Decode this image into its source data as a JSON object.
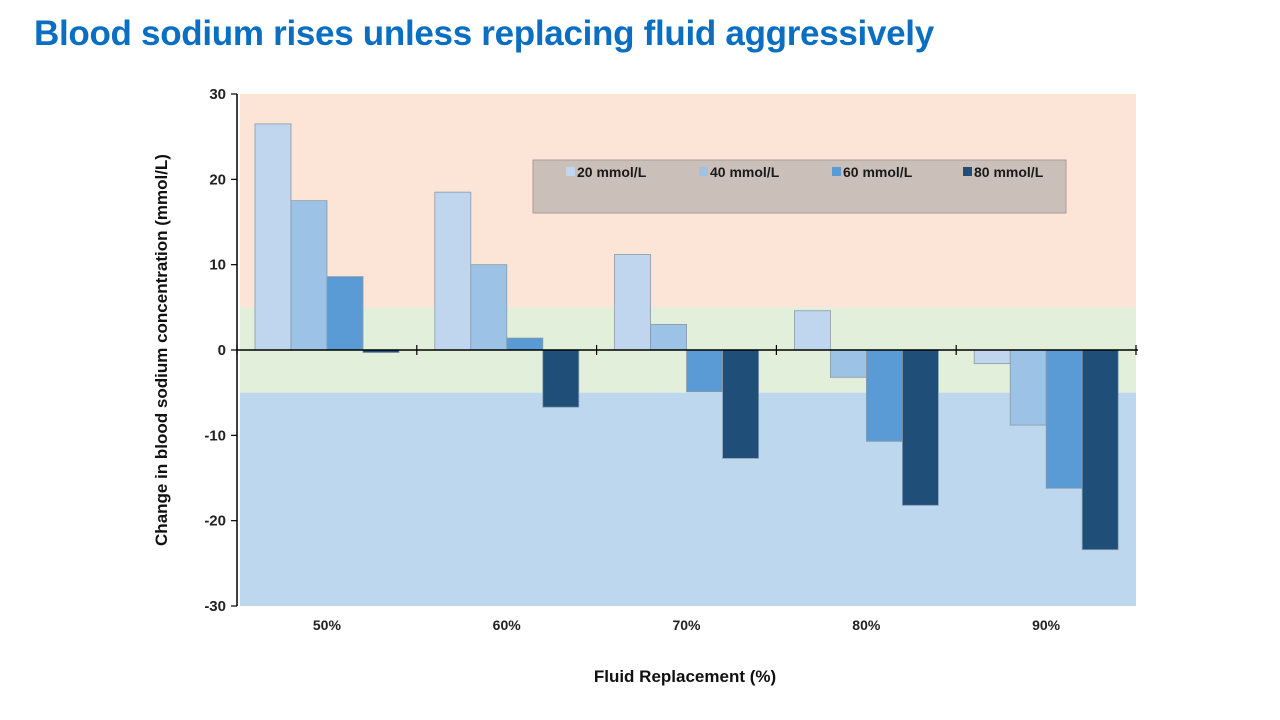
{
  "title": "Blood sodium rises unless replacing fluid aggressively",
  "chart_data": {
    "type": "bar",
    "categories": [
      "50%",
      "60%",
      "70%",
      "80%",
      "90%"
    ],
    "series": [
      {
        "name": "20 mmol/L",
        "color": "#bfd6ee",
        "values": [
          26.5,
          18.5,
          11.2,
          4.6,
          -1.6
        ]
      },
      {
        "name": "40 mmol/L",
        "color": "#9cc2e5",
        "values": [
          17.5,
          10.0,
          3.0,
          -3.2,
          -8.8
        ]
      },
      {
        "name": "60 mmol/L",
        "color": "#5b9bd5",
        "values": [
          8.6,
          1.4,
          -4.9,
          -10.7,
          -16.2
        ]
      },
      {
        "name": "80 mmol/L",
        "color": "#1f4e79",
        "values": [
          -0.3,
          -6.7,
          -12.7,
          -18.2,
          -23.4
        ]
      }
    ],
    "ylim": [
      -30,
      30
    ],
    "yticks": [
      "30",
      "20",
      "10",
      "0",
      "-10",
      "-20",
      "-30"
    ],
    "ylabel": "Change in blood sodium concentration (mmol/L)",
    "xlabel": "Fluid Replacement (%)",
    "zones": [
      {
        "from": 5,
        "to": 30,
        "color": "#fce4d6"
      },
      {
        "from": -5,
        "to": 5,
        "color": "#e2efda"
      },
      {
        "from": -30,
        "to": -5,
        "color": "#bdd7ee"
      }
    ],
    "legend_position": "top-right",
    "legend_background": "#cbc0b9",
    "grid": false
  }
}
